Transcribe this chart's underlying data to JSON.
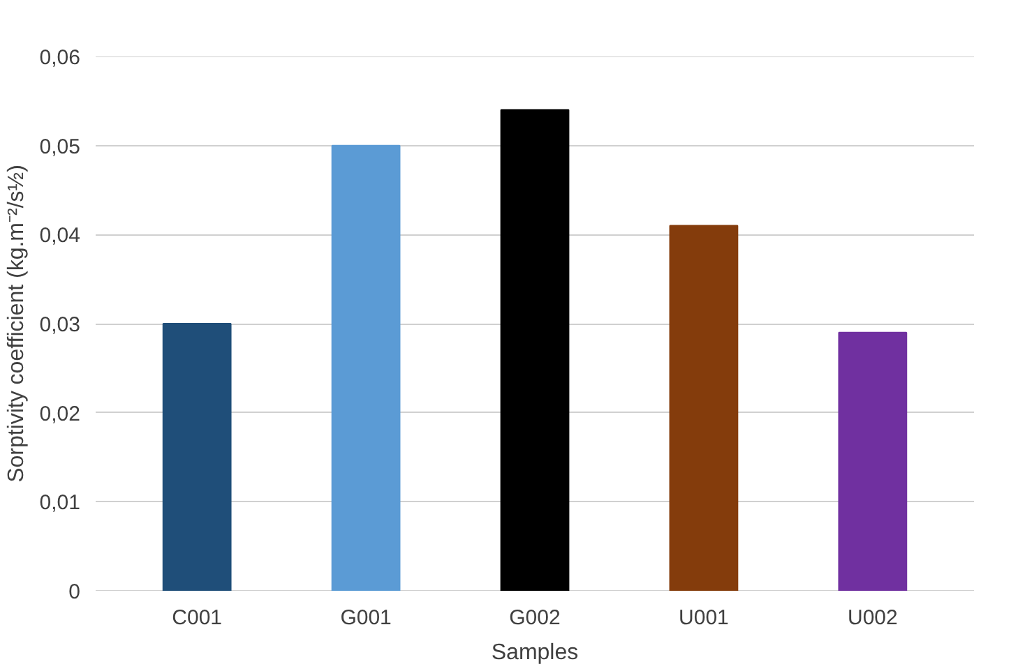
{
  "chart_data": {
    "type": "bar",
    "xlabel": "Samples",
    "ylabel": "Sorptivity coefficient (kg.m⁻²/s½)",
    "categories": [
      "C001",
      "G001",
      "G002",
      "U001",
      "U002"
    ],
    "values": [
      0.03,
      0.05,
      0.054,
      0.041,
      0.029
    ],
    "colors": [
      "#1f4e79",
      "#5b9bd5",
      "#000000",
      "#843c0c",
      "#7030a0"
    ],
    "ylim": [
      0,
      0.06
    ],
    "yticks": [
      0,
      {
        "value": 0.01,
        "label": "0,01"
      },
      {
        "value": 0.02,
        "label": "0,02"
      },
      {
        "value": 0.03,
        "label": "0,03"
      },
      {
        "value": 0.04,
        "label": "0,04"
      },
      {
        "value": 0.05,
        "label": "0,05"
      },
      {
        "value": 0.06,
        "label": "0,06"
      }
    ],
    "grid": "y"
  }
}
